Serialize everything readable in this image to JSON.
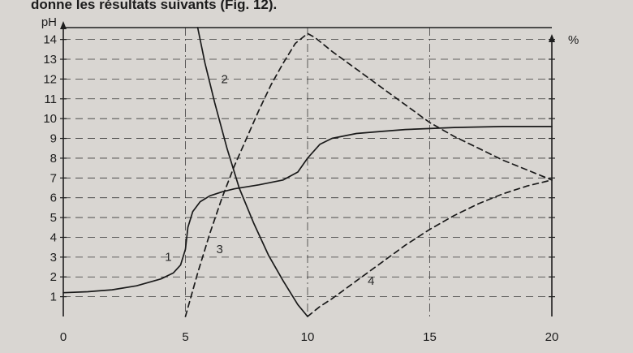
{
  "caption": "donne les résultats suivants (Fig. 12).",
  "chart_data": {
    "type": "line",
    "title": "",
    "xlabel": "",
    "ylabel": "pH",
    "y2label": "%",
    "xlim": [
      0,
      20
    ],
    "ylim": [
      0,
      14.6
    ],
    "x_ticks": [
      0,
      5,
      10,
      15,
      20
    ],
    "y_ticks": [
      1,
      2,
      3,
      4,
      5,
      6,
      7,
      8,
      9,
      10,
      11,
      12,
      13,
      14
    ],
    "grid": true,
    "legend": "none",
    "series": [
      {
        "name": "1",
        "style": "solid",
        "label_at": [
          4.3,
          2.8
        ],
        "x": [
          0,
          1,
          2,
          3,
          4,
          4.5,
          4.8,
          5.0,
          5.1,
          5.3,
          5.6,
          6.0,
          6.5,
          7.0,
          8.0,
          9.0,
          9.6,
          10.0,
          10.5,
          11.0,
          12.0,
          13.0,
          14.0,
          15.0,
          16.0,
          18.0,
          20.0
        ],
        "y": [
          1.2,
          1.25,
          1.35,
          1.55,
          1.9,
          2.2,
          2.6,
          3.4,
          4.5,
          5.3,
          5.8,
          6.1,
          6.3,
          6.45,
          6.65,
          6.9,
          7.3,
          8.0,
          8.7,
          9.0,
          9.25,
          9.35,
          9.45,
          9.5,
          9.55,
          9.6,
          9.6
        ]
      },
      {
        "name": "2",
        "style": "solid",
        "label_at": [
          6.6,
          11.8
        ],
        "x": [
          5.5,
          5.8,
          6.2,
          6.7,
          7.2,
          7.8,
          8.4,
          9.0,
          9.6,
          10.0
        ],
        "y": [
          14.6,
          12.8,
          10.8,
          8.5,
          6.5,
          4.7,
          3.1,
          1.8,
          0.6,
          0.0
        ]
      },
      {
        "name": "3",
        "style": "dashed",
        "label_at": [
          6.4,
          3.2
        ],
        "x": [
          5.0,
          5.5,
          6.0,
          6.5,
          7.0,
          7.5,
          8.0,
          8.5,
          9.0,
          9.5,
          10.0,
          10.3,
          10.6,
          11.0,
          12.0,
          13.0,
          14.0,
          15.0,
          16.0,
          17.0,
          18.0,
          19.0,
          20.0
        ],
        "y": [
          0.0,
          2.2,
          4.2,
          6.0,
          7.6,
          9.0,
          10.4,
          11.7,
          12.8,
          13.8,
          14.3,
          14.1,
          13.8,
          13.4,
          12.5,
          11.6,
          10.7,
          9.8,
          9.1,
          8.5,
          7.9,
          7.4,
          6.9
        ]
      },
      {
        "name": "4",
        "style": "dashed",
        "label_at": [
          12.6,
          1.6
        ],
        "x": [
          10.0,
          10.5,
          11.0,
          12.0,
          13.0,
          14.0,
          15.0,
          16.0,
          17.0,
          18.0,
          19.0,
          20.0
        ],
        "y": [
          0.0,
          0.5,
          0.9,
          1.8,
          2.7,
          3.6,
          4.4,
          5.1,
          5.7,
          6.2,
          6.6,
          6.9
        ]
      }
    ]
  }
}
